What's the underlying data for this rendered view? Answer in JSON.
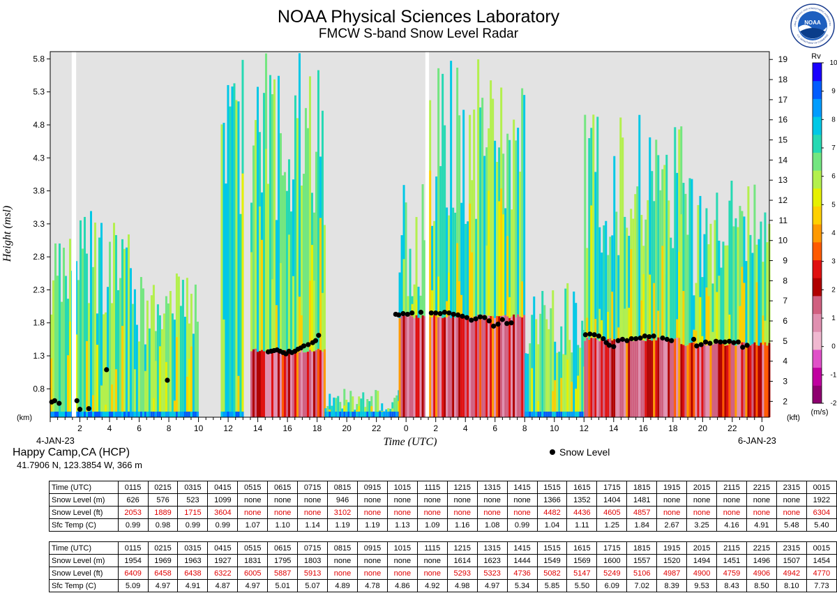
{
  "header": {
    "title": "NOAA Physical Sciences Laboratory",
    "subtitle": "FMCW S-band Snow Level Radar",
    "logo_text": "NOAA",
    "logo_ring_top": "NATIONAL OCEANIC AND ATMOSPHERIC ADMINISTRATION",
    "logo_ring_bottom": "U.S. DEPARTMENT OF COMMERCE"
  },
  "location": {
    "name": "Happy Camp,CA (HCP)",
    "coords": "41.7906 N, 123.3854 W, 366 m"
  },
  "dates": {
    "start": "4-JAN-23",
    "end": "6-JAN-23"
  },
  "legend": {
    "snow_level": "Snow Level"
  },
  "chart_data": {
    "type": "heatmap",
    "xlabel": "Time (UTC)",
    "ylabel": "Height (msl)",
    "y_unit_left": "(km)",
    "y_unit_right": "(kft)",
    "colorbar_label": "Rv",
    "colorbar_unit": "(m/s)",
    "colorbar_range": [
      -2,
      10
    ],
    "colorbar_ticks": [
      "10",
      "9",
      "8",
      "7",
      "6",
      "5",
      "4",
      "3",
      "2",
      "1",
      "0",
      "-1",
      "-2"
    ],
    "colorbar_colors": [
      "#1a00ff",
      "#005cff",
      "#009cff",
      "#00c8e6",
      "#26d9b3",
      "#73e680",
      "#b3f04d",
      "#e6f000",
      "#ffd000",
      "#ff9900",
      "#ff5a00",
      "#e01010",
      "#b00000",
      "#d06080",
      "#e090b0",
      "#f0b8d0",
      "#e050c8",
      "#c000a0",
      "#8e0070"
    ],
    "x_range_hours": [
      0,
      48.5
    ],
    "x_ticks": [
      {
        "h": 2,
        "label": "2"
      },
      {
        "h": 4,
        "label": "4"
      },
      {
        "h": 6,
        "label": "6"
      },
      {
        "h": 8,
        "label": "8"
      },
      {
        "h": 10,
        "label": "10"
      },
      {
        "h": 12,
        "label": "12"
      },
      {
        "h": 14,
        "label": "14"
      },
      {
        "h": 16,
        "label": "16"
      },
      {
        "h": 18,
        "label": "18"
      },
      {
        "h": 20,
        "label": "20"
      },
      {
        "h": 22,
        "label": "22"
      },
      {
        "h": 24,
        "label": "0"
      },
      {
        "h": 26,
        "label": "2"
      },
      {
        "h": 28,
        "label": "4"
      },
      {
        "h": 30,
        "label": "6"
      },
      {
        "h": 32,
        "label": "8"
      },
      {
        "h": 34,
        "label": "10"
      },
      {
        "h": 36,
        "label": "12"
      },
      {
        "h": 38,
        "label": "14"
      },
      {
        "h": 40,
        "label": "16"
      },
      {
        "h": 42,
        "label": "18"
      },
      {
        "h": 44,
        "label": "20"
      },
      {
        "h": 46,
        "label": "22"
      },
      {
        "h": 48,
        "label": "0"
      }
    ],
    "y_range_km": [
      0.37,
      5.91
    ],
    "y_ticks_km": [
      "0.8",
      "1.3",
      "1.8",
      "2.3",
      "2.8",
      "3.3",
      "3.8",
      "4.3",
      "4.8",
      "5.3",
      "5.8"
    ],
    "y_ticks_kft": [
      "2",
      "3",
      "4",
      "5",
      "6",
      "7",
      "8",
      "9",
      "10",
      "11",
      "12",
      "13",
      "14",
      "15",
      "16",
      "17",
      "18",
      "19"
    ],
    "data_gaps_hours": [
      [
        1.45,
        1.75
      ],
      [
        25.3,
        25.55
      ]
    ],
    "precip_segments": [
      {
        "start": 0,
        "end": 5.5,
        "top_km": 3.5,
        "melt_km": 0.0,
        "intensity": 0.4
      },
      {
        "start": 5.5,
        "end": 10.0,
        "top_km": 2.6,
        "melt_km": 0.0,
        "intensity": 0.3
      },
      {
        "start": 11.5,
        "end": 13.0,
        "top_km": 5.9,
        "melt_km": 0.0,
        "intensity": 0.2
      },
      {
        "start": 13.5,
        "end": 18.5,
        "top_km": 5.9,
        "melt_km": 1.38,
        "intensity": 0.9
      },
      {
        "start": 18.5,
        "end": 23.5,
        "top_km": 0.8,
        "melt_km": 0.0,
        "intensity": 0.1
      },
      {
        "start": 23.5,
        "end": 25.3,
        "top_km": 4.0,
        "melt_km": 1.9,
        "intensity": 0.9
      },
      {
        "start": 25.55,
        "end": 32.0,
        "top_km": 5.9,
        "melt_km": 1.9,
        "intensity": 0.9
      },
      {
        "start": 32.0,
        "end": 36.0,
        "top_km": 2.4,
        "melt_km": 0.0,
        "intensity": 0.2
      },
      {
        "start": 36.0,
        "end": 42.5,
        "top_km": 5.0,
        "melt_km": 1.55,
        "intensity": 0.85
      },
      {
        "start": 42.5,
        "end": 48.5,
        "top_km": 4.0,
        "melt_km": 1.48,
        "intensity": 0.7
      }
    ],
    "snow_level_points": [
      [
        0.1,
        0.6
      ],
      [
        0.3,
        0.62
      ],
      [
        0.6,
        0.58
      ],
      [
        1.8,
        0.62
      ],
      [
        2.0,
        0.49
      ],
      [
        2.6,
        0.5
      ],
      [
        3.8,
        1.09
      ],
      [
        7.9,
        0.93
      ],
      [
        14.7,
        1.36
      ],
      [
        14.9,
        1.37
      ],
      [
        15.1,
        1.38
      ],
      [
        15.3,
        1.39
      ],
      [
        15.5,
        1.37
      ],
      [
        15.7,
        1.35
      ],
      [
        15.9,
        1.33
      ],
      [
        16.1,
        1.37
      ],
      [
        16.3,
        1.35
      ],
      [
        16.5,
        1.37
      ],
      [
        16.7,
        1.4
      ],
      [
        16.9,
        1.42
      ],
      [
        17.1,
        1.45
      ],
      [
        17.4,
        1.47
      ],
      [
        17.7,
        1.5
      ],
      [
        17.9,
        1.53
      ],
      [
        18.1,
        1.61
      ],
      [
        23.3,
        1.93
      ],
      [
        23.5,
        1.92
      ],
      [
        23.8,
        1.94
      ],
      [
        24.1,
        1.93
      ],
      [
        24.4,
        1.95
      ],
      [
        25.0,
        1.96
      ],
      [
        25.7,
        1.95
      ],
      [
        26.0,
        1.95
      ],
      [
        26.3,
        1.94
      ],
      [
        26.6,
        1.96
      ],
      [
        26.9,
        1.95
      ],
      [
        27.2,
        1.93
      ],
      [
        27.5,
        1.92
      ],
      [
        27.8,
        1.9
      ],
      [
        28.1,
        1.88
      ],
      [
        28.4,
        1.84
      ],
      [
        28.7,
        1.86
      ],
      [
        29.0,
        1.89
      ],
      [
        29.3,
        1.88
      ],
      [
        29.6,
        1.83
      ],
      [
        29.9,
        1.75
      ],
      [
        30.2,
        1.78
      ],
      [
        30.5,
        1.85
      ],
      [
        30.8,
        1.79
      ],
      [
        31.1,
        1.8
      ],
      [
        36.1,
        1.62
      ],
      [
        36.4,
        1.63
      ],
      [
        36.7,
        1.62
      ],
      [
        37.0,
        1.6
      ],
      [
        37.3,
        1.56
      ],
      [
        37.5,
        1.5
      ],
      [
        37.7,
        1.46
      ],
      [
        38.0,
        1.44
      ],
      [
        38.3,
        1.53
      ],
      [
        38.6,
        1.55
      ],
      [
        38.9,
        1.53
      ],
      [
        39.2,
        1.56
      ],
      [
        39.5,
        1.56
      ],
      [
        39.8,
        1.57
      ],
      [
        40.1,
        1.6
      ],
      [
        40.4,
        1.59
      ],
      [
        40.7,
        1.6
      ],
      [
        41.3,
        1.57
      ],
      [
        41.6,
        1.55
      ],
      [
        41.9,
        1.53
      ],
      [
        43.4,
        1.55
      ],
      [
        43.6,
        1.45
      ],
      [
        43.9,
        1.47
      ],
      [
        44.2,
        1.51
      ],
      [
        44.5,
        1.49
      ],
      [
        44.9,
        1.52
      ],
      [
        45.2,
        1.51
      ],
      [
        45.5,
        1.51
      ],
      [
        45.8,
        1.52
      ],
      [
        46.1,
        1.5
      ],
      [
        46.4,
        1.51
      ],
      [
        46.7,
        1.43
      ],
      [
        47.0,
        1.46
      ]
    ]
  },
  "tables": [
    {
      "rows": [
        {
          "label": "Time (UTC)",
          "values": [
            "0115",
            "0215",
            "0315",
            "0415",
            "0515",
            "0615",
            "0715",
            "0815",
            "0915",
            "1015",
            "1115",
            "1215",
            "1315",
            "1415",
            "1515",
            "1615",
            "1715",
            "1815",
            "1915",
            "2015",
            "2115",
            "2215",
            "2315",
            "0015"
          ]
        },
        {
          "label": "Snow Level (m)",
          "values": [
            "626",
            "576",
            "523",
            "1099",
            "none",
            "none",
            "none",
            "946",
            "none",
            "none",
            "none",
            "none",
            "none",
            "none",
            "1366",
            "1352",
            "1404",
            "1481",
            "none",
            "none",
            "none",
            "none",
            "none",
            "1922"
          ]
        },
        {
          "label": "Snow Level (ft)",
          "values": [
            "2053",
            "1889",
            "1715",
            "3604",
            "none",
            "none",
            "none",
            "3102",
            "none",
            "none",
            "none",
            "none",
            "none",
            "none",
            "4482",
            "4436",
            "4605",
            "4857",
            "none",
            "none",
            "none",
            "none",
            "none",
            "6304"
          ]
        },
        {
          "label": "Sfc Temp (C)",
          "values": [
            "0.99",
            "0.98",
            "0.99",
            "0.99",
            "1.07",
            "1.10",
            "1.14",
            "1.19",
            "1.19",
            "1.13",
            "1.09",
            "1.16",
            "1.08",
            "0.99",
            "1.04",
            "1.11",
            "1.25",
            "1.84",
            "2.67",
            "3.25",
            "4.16",
            "4.91",
            "5.48",
            "5.40"
          ]
        }
      ]
    },
    {
      "rows": [
        {
          "label": "Time (UTC)",
          "values": [
            "0115",
            "0215",
            "0315",
            "0415",
            "0515",
            "0615",
            "0715",
            "0815",
            "0915",
            "1015",
            "1115",
            "1215",
            "1315",
            "1415",
            "1515",
            "1615",
            "1715",
            "1815",
            "1915",
            "2015",
            "2115",
            "2215",
            "2315",
            "0015"
          ]
        },
        {
          "label": "Snow Level (m)",
          "values": [
            "1954",
            "1969",
            "1963",
            "1927",
            "1831",
            "1795",
            "1803",
            "none",
            "none",
            "none",
            "none",
            "1614",
            "1623",
            "1444",
            "1549",
            "1569",
            "1600",
            "1557",
            "1520",
            "1494",
            "1451",
            "1496",
            "1507",
            "1454"
          ]
        },
        {
          "label": "Snow Level (ft)",
          "values": [
            "6409",
            "6458",
            "6438",
            "6322",
            "6005",
            "5887",
            "5913",
            "none",
            "none",
            "none",
            "none",
            "5293",
            "5323",
            "4736",
            "5082",
            "5147",
            "5249",
            "5106",
            "4987",
            "4900",
            "4759",
            "4906",
            "4942",
            "4770"
          ]
        },
        {
          "label": "Sfc Temp (C)",
          "values": [
            "5.09",
            "4.97",
            "4.91",
            "4.87",
            "4.97",
            "5.01",
            "5.07",
            "4.89",
            "4.78",
            "4.86",
            "4.92",
            "4.98",
            "4.97",
            "5.34",
            "5.85",
            "5.50",
            "6.09",
            "7.02",
            "8.39",
            "9.53",
            "8.43",
            "8.50",
            "8.10",
            "7.73"
          ]
        }
      ]
    }
  ]
}
